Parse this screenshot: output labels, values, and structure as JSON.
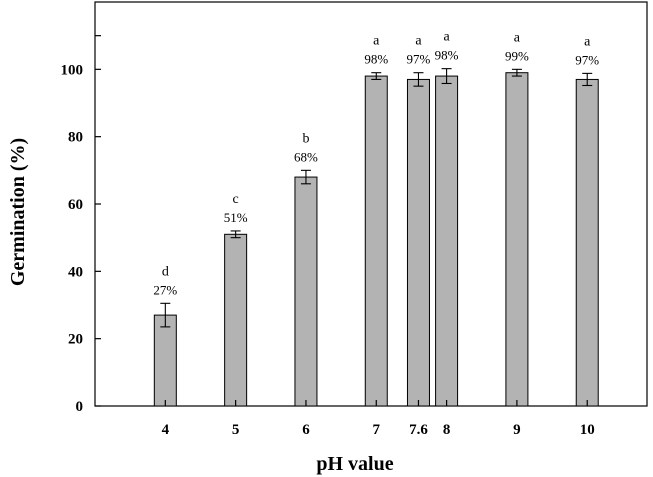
{
  "chart_data": {
    "type": "bar",
    "title": "",
    "xlabel": "pH value",
    "ylabel": "Germination (%)",
    "x_scale": "linear",
    "xlim": [
      3,
      10.85
    ],
    "ylim": [
      0,
      120
    ],
    "yticks": [
      "0",
      "20",
      "40",
      "60",
      "80",
      "100"
    ],
    "grid": false,
    "legend": "none",
    "bar_color": "#b3b3b3",
    "categories": [
      "4",
      "5",
      "6",
      "7",
      "7.6",
      "8",
      "9",
      "10"
    ],
    "x": [
      4,
      5,
      6,
      7,
      7.6,
      8,
      9,
      10
    ],
    "values": [
      27,
      51,
      68,
      98,
      97,
      98,
      99,
      97
    ],
    "error": [
      3.5,
      1,
      2,
      1,
      2,
      2.2,
      1,
      1.8
    ],
    "value_labels": [
      "27%",
      "51%",
      "68%",
      "98%",
      "97%",
      "98%",
      "99%",
      "97%"
    ],
    "letters": [
      "d",
      "c",
      "b",
      "a",
      "a",
      "a",
      "a",
      "a"
    ]
  }
}
